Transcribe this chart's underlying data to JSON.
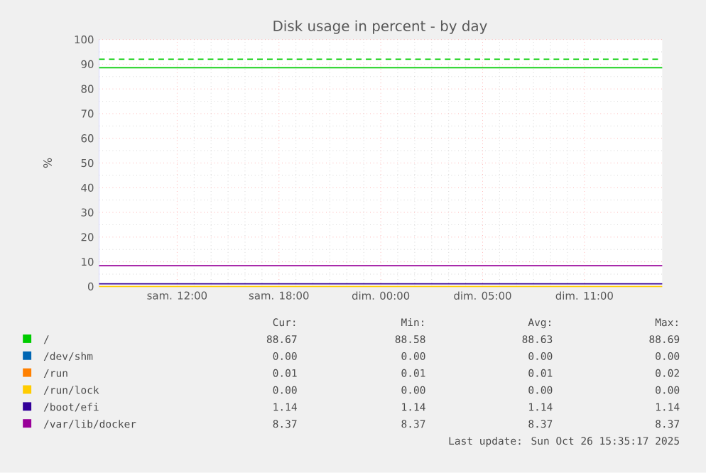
{
  "chart_data": {
    "type": "line",
    "title": "Disk usage in percent - by day",
    "ylabel": "%",
    "x": [
      "2025-10-25T05:24",
      "2025-10-26T14:35"
    ],
    "series": [
      {
        "name": "/",
        "color": "#00cc00",
        "values": [
          88.6,
          88.6
        ]
      },
      {
        "name": "/dev/shm",
        "color": "#0066b3",
        "values": [
          null,
          null
        ]
      },
      {
        "name": "/run",
        "color": "#ff8000",
        "values": [
          null,
          null
        ]
      },
      {
        "name": "/run/lock",
        "color": "#ffcc00",
        "values": [
          0,
          0
        ]
      },
      {
        "name": "/boot/efi",
        "color": "#330099",
        "values": [
          1.1,
          1.1
        ]
      },
      {
        "name": "/var/lib/docker",
        "color": "#990099",
        "values": [
          8.4,
          8.4
        ]
      }
    ],
    "xlim": [
      "2025-10-25T05:24",
      "2025-10-26T14:35"
    ],
    "xticks": [
      {
        "value": "2025-10-25T10:00",
        "label": "sam. 12:00"
      },
      {
        "value": "2025-10-25T16:00",
        "label": "sam. 18:00"
      },
      {
        "value": "2025-10-25T22:00",
        "label": "dim. 00:00"
      },
      {
        "value": "2025-10-26T04:00",
        "label": "dim. 05:00"
      },
      {
        "value": "2025-10-26T10:00",
        "label": "dim. 11:00"
      }
    ],
    "ylim": [
      0,
      100
    ],
    "yticks": [
      0,
      10,
      20,
      30,
      40,
      50,
      60,
      70,
      80,
      90,
      100
    ],
    "ref_lines": [
      {
        "axis": "y",
        "value": 92,
        "color": "#00cc00",
        "line_style": "dashed"
      }
    ],
    "grid": true,
    "legend": "bottom",
    "marker": "none",
    "line_style": "solid",
    "annotations": [
      "Cur:",
      "Min:",
      "Avg:",
      "Max:",
      "88.67",
      "88.58",
      "88.63",
      "88.69",
      "0.00",
      "0.00",
      "0.00",
      "0.00",
      "0.01",
      "0.01",
      "0.01",
      "0.02",
      "0.00",
      "0.00",
      "0.00",
      "0.00",
      "1.14",
      "1.14",
      "1.14",
      "1.14",
      "8.37",
      "8.37",
      "8.37",
      "8.37",
      "Last update: Sun Oct 26 15:35:17 2025"
    ]
  }
}
